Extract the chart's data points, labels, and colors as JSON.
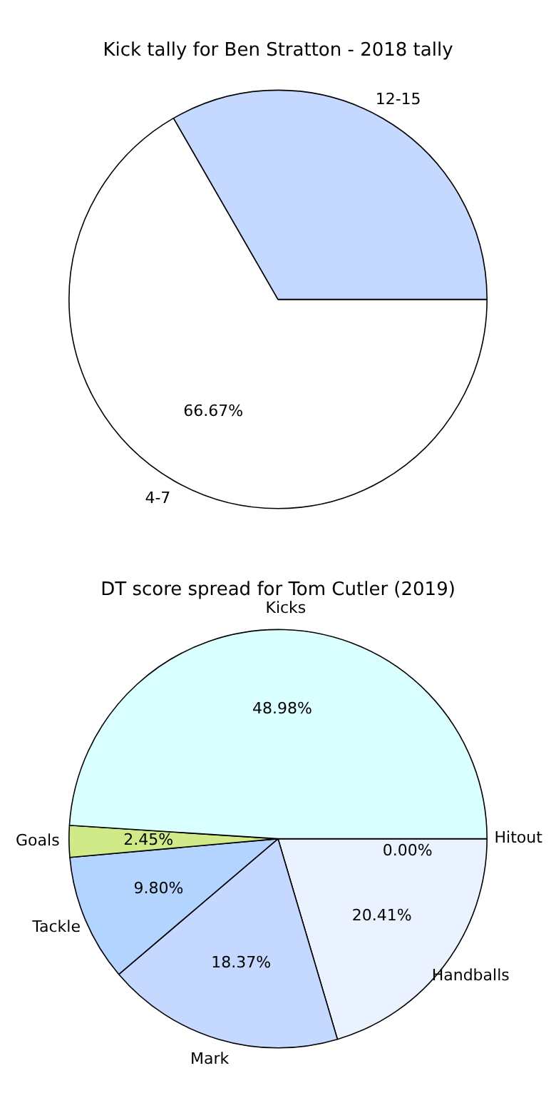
{
  "chart_data": [
    {
      "type": "pie",
      "title": "Kick tally for Ben Stratton - 2018 tally",
      "categories": [
        "4-7",
        "12-15"
      ],
      "values": [
        66.67,
        33.33
      ],
      "value_labels": [
        "66.67%",
        null
      ],
      "colors": [
        "#ffffff",
        "#c5d8ff"
      ],
      "legend": false
    },
    {
      "type": "pie",
      "title": "DT score spread for Tom Cutler (2019)",
      "categories": [
        "Hitout",
        "Handballs",
        "Mark",
        "Tackle",
        "Goals",
        "Kicks"
      ],
      "values": [
        0.0,
        20.41,
        18.37,
        9.8,
        2.45,
        48.98
      ],
      "value_labels": [
        "0.00%",
        "20.41%",
        "18.37%",
        "9.80%",
        "2.45%",
        "48.98%"
      ],
      "colors": [
        "#c8c8c8",
        "#eaf1ff",
        "#c5d8ff",
        "#b3d4ff",
        "#d0ea8a",
        "#d9ffff"
      ],
      "legend": false
    }
  ]
}
